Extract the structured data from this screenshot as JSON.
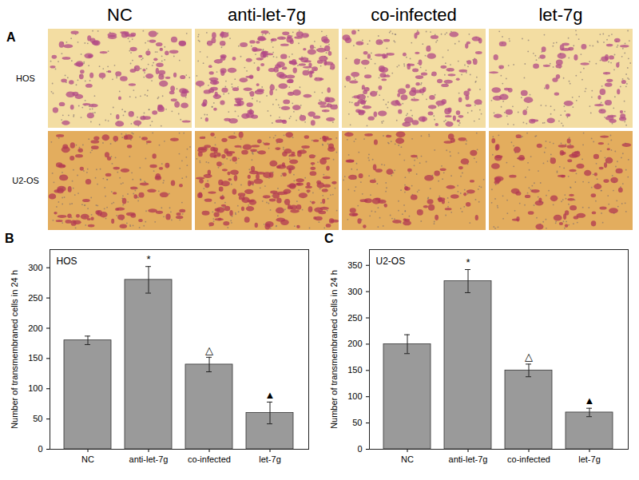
{
  "panel_a": {
    "label": "A",
    "columns": [
      "NC",
      "anti-let-7g",
      "co-infected",
      "let-7g"
    ],
    "rows": [
      "HOS",
      "U2-OS"
    ]
  },
  "chart_data": [
    {
      "type": "bar",
      "panel_label": "B",
      "title": "HOS",
      "categories": [
        "NC",
        "anti-let-7g",
        "co-infected",
        "let-7g"
      ],
      "values": [
        180,
        280,
        140,
        60
      ],
      "errors": [
        7,
        22,
        12,
        18
      ],
      "annotations": [
        null,
        "*",
        "△",
        "▲"
      ],
      "color": "#9a9a9a",
      "ylabel": "Number of transmembraned cells in 24 h",
      "ylim": [
        0,
        330
      ],
      "yticks": [
        0,
        50,
        100,
        150,
        200,
        250,
        300
      ]
    },
    {
      "type": "bar",
      "panel_label": "C",
      "title": "U2-OS",
      "categories": [
        "NC",
        "anti-let-7g",
        "co-infected",
        "let-7g"
      ],
      "values": [
        200,
        320,
        150,
        70
      ],
      "errors": [
        18,
        22,
        12,
        8
      ],
      "annotations": [
        null,
        "*",
        "△",
        "▲"
      ],
      "color": "#9a9a9a",
      "ylabel": "Number of transmembraned cells in 24 h",
      "ylim": [
        0,
        380
      ],
      "yticks": [
        0,
        50,
        100,
        150,
        200,
        250,
        300,
        350
      ]
    }
  ]
}
